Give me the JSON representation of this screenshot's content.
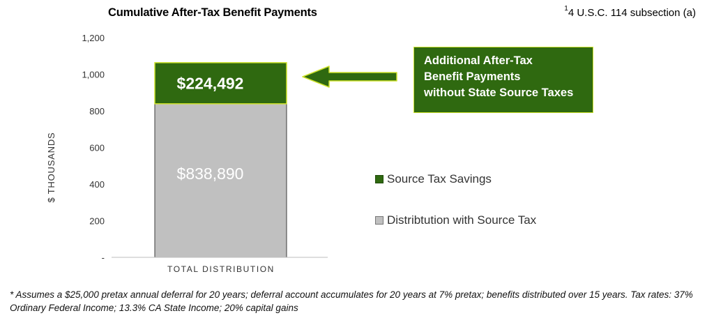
{
  "header": {
    "title": "Cumulative After-Tax Benefit Payments",
    "reference_sup": "1",
    "reference_text": "4 U.S.C. 114 subsection (a)"
  },
  "chart_data": {
    "type": "bar",
    "stacked": true,
    "categories": [
      "TOTAL DISTRIBUTION"
    ],
    "series": [
      {
        "name": "Distribtution with Source Tax",
        "values": [
          838.89
        ],
        "label": "$838,890",
        "color": "#c0c0c0"
      },
      {
        "name": "Source Tax Savings",
        "values": [
          224.492
        ],
        "label": "$224,492",
        "color": "#2f6910"
      }
    ],
    "ylabel": "$ THOUSANDS",
    "ylim": [
      0,
      1200
    ],
    "yticks": [
      {
        "value": 0,
        "label": "-"
      },
      {
        "value": 200,
        "label": "200"
      },
      {
        "value": 400,
        "label": "400"
      },
      {
        "value": 600,
        "label": "600"
      },
      {
        "value": 800,
        "label": "800"
      },
      {
        "value": 1000,
        "label": "1,000"
      },
      {
        "value": 1200,
        "label": "1,200"
      }
    ],
    "legend_position": "right",
    "annotation": {
      "lines": [
        "Additional After-Tax",
        "Benefit Payments",
        "without State Source Taxes"
      ],
      "arrow_color": "#2f6910",
      "background": "#2f6910",
      "border": "#cde22a"
    }
  },
  "footnote": "* Assumes a $25,000 pretax annual deferral for 20 years; deferral account accumulates for 20 years at 7% pretax; benefits distributed over 15 years. Tax rates: 37% Ordinary Federal Income; 13.3% CA State Income; 20% capital gains"
}
